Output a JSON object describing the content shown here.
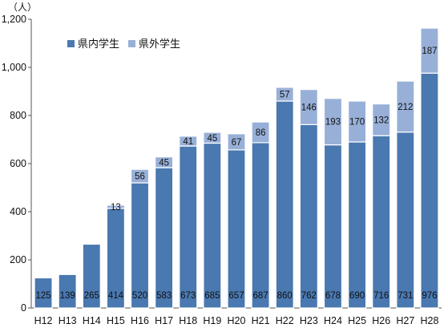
{
  "chart_data": {
    "type": "bar",
    "stacked": true,
    "unit_label": "（人）",
    "categories": [
      "H12",
      "H13",
      "H14",
      "H15",
      "H16",
      "H17",
      "H18",
      "H19",
      "H20",
      "H21",
      "H22",
      "H23",
      "H24",
      "H25",
      "H26",
      "H27",
      "H28"
    ],
    "series": [
      {
        "name": "県内学生",
        "color": "#4a78b0",
        "values": [
          125,
          139,
          265,
          414,
          520,
          583,
          673,
          685,
          657,
          687,
          860,
          762,
          678,
          690,
          716,
          731,
          976
        ]
      },
      {
        "name": "県外学生",
        "color": "#98b0d8",
        "values": [
          null,
          null,
          null,
          13,
          56,
          45,
          41,
          45,
          67,
          86,
          57,
          146,
          193,
          170,
          132,
          212,
          187
        ]
      }
    ],
    "ylim": [
      0,
      1200
    ],
    "yticks": [
      "0",
      "200",
      "400",
      "600",
      "800",
      "1,000",
      "1,200"
    ],
    "grid": false,
    "legend": "top-left"
  }
}
